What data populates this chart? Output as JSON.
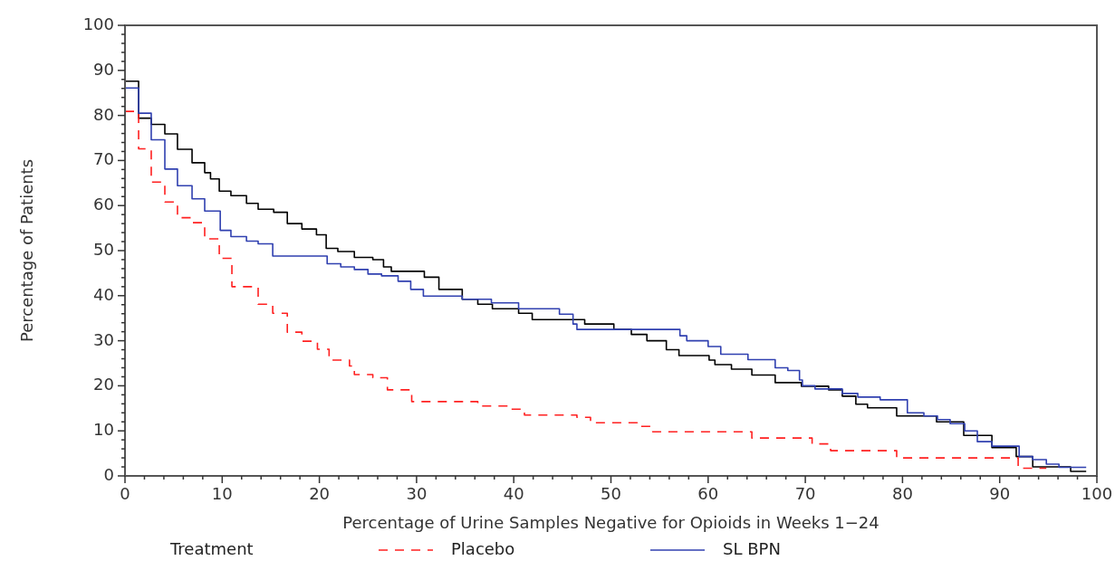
{
  "chart_data": {
    "type": "step",
    "xlabel": "Percentage of Urine Samples Negative for Opioids in Weeks 1−24",
    "ylabel": "Percentage of Patients",
    "legend_title": "Treatment",
    "legend": "bottom",
    "grid": false,
    "xlim": [
      0,
      100
    ],
    "ylim": [
      0,
      100
    ],
    "xticks": [
      0,
      {
        "value": 2,
        "label": null
      },
      {
        "value": 4,
        "label": null
      },
      {
        "value": 6,
        "label": null
      },
      {
        "value": 8,
        "label": null
      },
      10,
      {
        "value": 12,
        "label": null
      },
      {
        "value": 14,
        "label": null
      },
      {
        "value": 16,
        "label": null
      },
      {
        "value": 18,
        "label": null
      },
      20,
      {
        "value": 22,
        "label": null
      },
      {
        "value": 24,
        "label": null
      },
      {
        "value": 26,
        "label": null
      },
      {
        "value": 28,
        "label": null
      },
      30,
      {
        "value": 32,
        "label": null
      },
      {
        "value": 34,
        "label": null
      },
      {
        "value": 36,
        "label": null
      },
      {
        "value": 38,
        "label": null
      },
      40,
      {
        "value": 42,
        "label": null
      },
      {
        "value": 44,
        "label": null
      },
      {
        "value": 46,
        "label": null
      },
      {
        "value": 48,
        "label": null
      },
      50,
      {
        "value": 52,
        "label": null
      },
      {
        "value": 54,
        "label": null
      },
      {
        "value": 56,
        "label": null
      },
      {
        "value": 58,
        "label": null
      },
      60,
      {
        "value": 62,
        "label": null
      },
      {
        "value": 64,
        "label": null
      },
      {
        "value": 66,
        "label": null
      },
      {
        "value": 68,
        "label": null
      },
      70,
      {
        "value": 72,
        "label": null
      },
      {
        "value": 74,
        "label": null
      },
      {
        "value": 76,
        "label": null
      },
      {
        "value": 78,
        "label": null
      },
      80,
      {
        "value": 82,
        "label": null
      },
      {
        "value": 84,
        "label": null
      },
      {
        "value": 86,
        "label": null
      },
      {
        "value": 88,
        "label": null
      },
      90,
      {
        "value": 92,
        "label": null
      },
      {
        "value": 94,
        "label": null
      },
      {
        "value": 96,
        "label": null
      },
      {
        "value": 98,
        "label": null
      },
      100
    ],
    "yticks": [
      0,
      {
        "value": 2,
        "label": null
      },
      {
        "value": 4,
        "label": null
      },
      {
        "value": 6,
        "label": null
      },
      {
        "value": 8,
        "label": null
      },
      10,
      {
        "value": 12,
        "label": null
      },
      {
        "value": 14,
        "label": null
      },
      {
        "value": 16,
        "label": null
      },
      {
        "value": 18,
        "label": null
      },
      20,
      {
        "value": 22,
        "label": null
      },
      {
        "value": 24,
        "label": null
      },
      {
        "value": 26,
        "label": null
      },
      {
        "value": 28,
        "label": null
      },
      30,
      {
        "value": 32,
        "label": null
      },
      {
        "value": 34,
        "label": null
      },
      {
        "value": 36,
        "label": null
      },
      {
        "value": 38,
        "label": null
      },
      40,
      {
        "value": 42,
        "label": null
      },
      {
        "value": 44,
        "label": null
      },
      {
        "value": 46,
        "label": null
      },
      {
        "value": 48,
        "label": null
      },
      50,
      {
        "value": 52,
        "label": null
      },
      {
        "value": 54,
        "label": null
      },
      {
        "value": 56,
        "label": null
      },
      {
        "value": 58,
        "label": null
      },
      60,
      {
        "value": 62,
        "label": null
      },
      {
        "value": 64,
        "label": null
      },
      {
        "value": 66,
        "label": null
      },
      {
        "value": 68,
        "label": null
      },
      70,
      {
        "value": 72,
        "label": null
      },
      {
        "value": 74,
        "label": null
      },
      {
        "value": 76,
        "label": null
      },
      {
        "value": 78,
        "label": null
      },
      80,
      {
        "value": 82,
        "label": null
      },
      {
        "value": 84,
        "label": null
      },
      {
        "value": 86,
        "label": null
      },
      {
        "value": 88,
        "label": null
      },
      90,
      {
        "value": 92,
        "label": null
      },
      {
        "value": 94,
        "label": null
      },
      {
        "value": 96,
        "label": null
      },
      {
        "value": 98,
        "label": null
      },
      100
    ],
    "series": [
      {
        "color": "#000000",
        "line_style": "solid",
        "x": [
          0,
          1.4,
          2.7,
          4.1,
          5.4,
          6.9,
          8.2,
          8.8,
          9.7,
          10.9,
          12.5,
          13.7,
          15.3,
          16.7,
          18.2,
          19.7,
          20.7,
          21.9,
          23.6,
          25.5,
          26.6,
          27.4,
          30.8,
          32.3,
          34.7,
          36.3,
          37.8,
          40.5,
          41.9,
          47.3,
          50.3,
          52.1,
          53.7,
          55.7,
          57,
          60.1,
          60.7,
          62.4,
          64.5,
          66.9,
          69.6,
          72.4,
          73.8,
          75.2,
          76.4,
          79.4,
          83.5,
          86.3,
          89.2,
          91.7,
          93.4,
          97.3,
          98.9
        ],
        "values": [
          87.6,
          79.4,
          78,
          75.9,
          72.5,
          69.5,
          67.3,
          65.9,
          63.2,
          62.2,
          60.5,
          59.2,
          58.5,
          56,
          54.8,
          53.5,
          50.5,
          49.8,
          48.5,
          48,
          46.4,
          45.4,
          44.1,
          41.4,
          39.2,
          38.1,
          37.1,
          36.1,
          34.7,
          33.7,
          32.5,
          31.4,
          30,
          28,
          26.7,
          25.7,
          24.7,
          23.7,
          22.4,
          20.7,
          19.9,
          19.1,
          17.7,
          15.9,
          15.1,
          13.3,
          12,
          9,
          6.3,
          4.3,
          2,
          1,
          1
        ]
      },
      {
        "name": "Placebo",
        "color": "#ff2020",
        "line_style": "dashed",
        "x": [
          0,
          1.4,
          2.7,
          4.1,
          5.4,
          6.9,
          8.2,
          9.7,
          11,
          13.7,
          15.2,
          16.7,
          18.2,
          19.8,
          21,
          23.1,
          23.6,
          25.5,
          27,
          29.5,
          36.3,
          39.4,
          41.1,
          46.5,
          47.9,
          52.7,
          54.3,
          64.5,
          70.7,
          72.6,
          79.4,
          91.9,
          94.8
        ],
        "values": [
          80.9,
          72.6,
          65.2,
          60.8,
          57.3,
          56.2,
          52.6,
          48.3,
          42,
          38.1,
          36.1,
          31.9,
          29.9,
          28.1,
          25.7,
          24.4,
          22.5,
          21.8,
          19.1,
          16.5,
          15.5,
          14.8,
          13.5,
          13,
          11.8,
          11,
          9.8,
          8.4,
          7.1,
          5.6,
          4,
          1.7,
          1.7
        ]
      },
      {
        "name": "SL BPN",
        "color": "#3040b0",
        "line_style": "solid",
        "x": [
          0,
          1.4,
          2.7,
          4.1,
          5.4,
          6.9,
          8.2,
          9.8,
          10.9,
          12.5,
          13.7,
          15.2,
          20.8,
          22.2,
          23.6,
          25,
          26.4,
          28.1,
          29.4,
          30.7,
          34.7,
          37.7,
          40.5,
          44.7,
          46.1,
          46.5,
          57.1,
          57.8,
          60,
          61.3,
          64.1,
          66.9,
          68.2,
          69.4,
          69.7,
          71,
          73.8,
          75.4,
          77.7,
          80.5,
          82.2,
          83.6,
          84.9,
          86.4,
          87.7,
          89.2,
          92,
          93.4,
          94.8,
          96.1,
          98.9
        ],
        "values": [
          86.1,
          80.5,
          74.6,
          68.1,
          64.4,
          61.5,
          58.8,
          54.5,
          53.1,
          52.1,
          51.5,
          48.8,
          47.1,
          46.4,
          45.8,
          44.8,
          44.4,
          43.2,
          41.4,
          39.9,
          39.2,
          38.4,
          37.1,
          35.9,
          33.7,
          32.5,
          31.1,
          30,
          28.7,
          27,
          25.8,
          24,
          23.4,
          21.3,
          20,
          19.3,
          18.3,
          17.5,
          16.9,
          14,
          13.3,
          12.5,
          11.6,
          10,
          7.6,
          6.6,
          4.3,
          3.6,
          2.6,
          1.9,
          1.9
        ]
      }
    ]
  }
}
